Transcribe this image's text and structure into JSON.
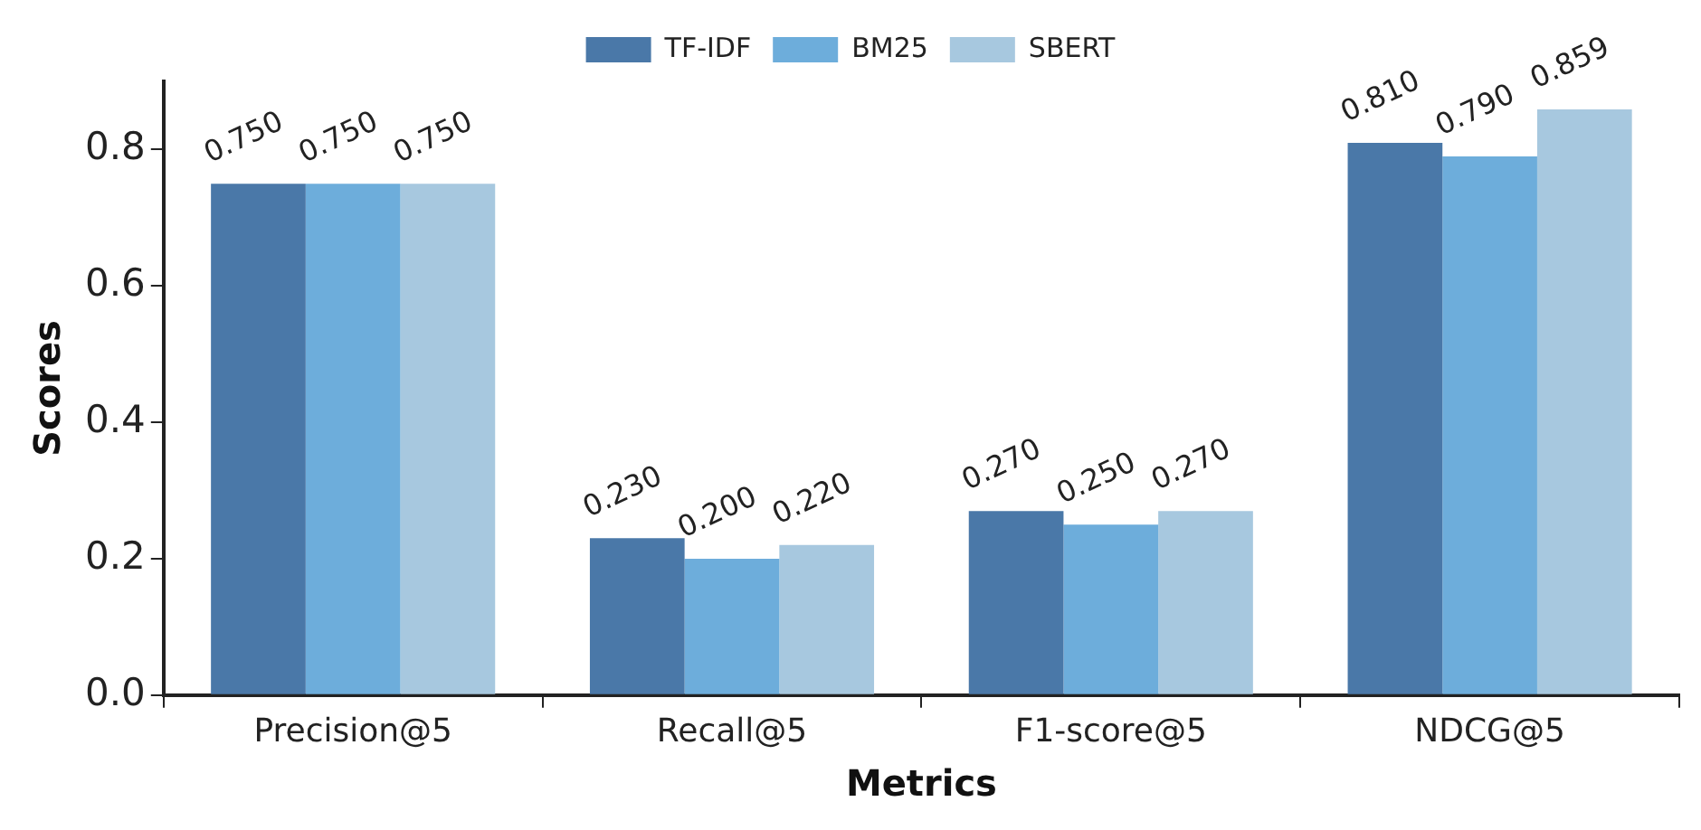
{
  "chart_data": {
    "type": "bar",
    "xlabel": "Metrics",
    "ylabel": "Scores",
    "categories": [
      "Precision@5",
      "Recall@5",
      "F1-score@5",
      "NDCG@5"
    ],
    "series": [
      {
        "name": "TF-IDF",
        "color": "#4a78a8",
        "values": [
          0.75,
          0.23,
          0.27,
          0.81
        ],
        "value_labels": [
          "0.750",
          "0.230",
          "0.270",
          "0.810"
        ]
      },
      {
        "name": "BM25",
        "color": "#6daddb",
        "values": [
          0.75,
          0.2,
          0.25,
          0.79
        ],
        "value_labels": [
          "0.750",
          "0.200",
          "0.250",
          "0.790"
        ]
      },
      {
        "name": "SBERT",
        "color": "#a7c8df",
        "values": [
          0.75,
          0.22,
          0.27,
          0.859
        ],
        "value_labels": [
          "0.750",
          "0.220",
          "0.270",
          "0.859"
        ]
      }
    ],
    "ylim": [
      0,
      0.9
    ],
    "yticks": [
      {
        "value": 0,
        "label": "0.0"
      },
      {
        "value": 0.2,
        "label": "0.2"
      },
      {
        "value": 0.4,
        "label": "0.4"
      },
      {
        "value": 0.6,
        "label": "0.6"
      },
      {
        "value": 0.8,
        "label": "0.8"
      }
    ],
    "grid": false,
    "legend": "top"
  }
}
